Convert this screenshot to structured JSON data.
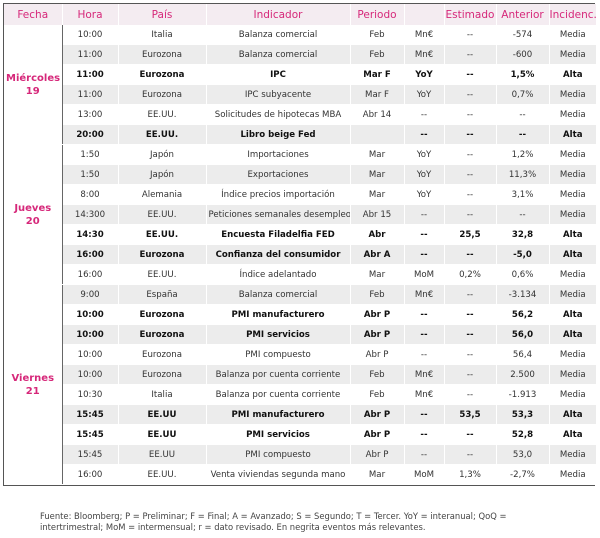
{
  "headers": [
    "Fecha",
    "Hora",
    "País",
    "Indicador",
    "Periodo",
    "",
    "Estimado",
    "Anterior",
    "Incidenc."
  ],
  "days": [
    {
      "label": "Miércoles 19",
      "rows": [
        {
          "hora": "10:00",
          "pais": "Italia",
          "indicador": "Balanza comercial",
          "periodo": "Feb",
          "unidad": "Mn€",
          "estimado": "--",
          "anterior": "-574",
          "incidencia": "Media",
          "bold": false
        },
        {
          "hora": "11:00",
          "pais": "Eurozona",
          "indicador": "Balanza comercial",
          "periodo": "Feb",
          "unidad": "Mn€",
          "estimado": "--",
          "anterior": "-600",
          "incidencia": "Media",
          "bold": false
        },
        {
          "hora": "11:00",
          "pais": "Eurozona",
          "indicador": "IPC",
          "periodo": "Mar F",
          "unidad": "YoY",
          "estimado": "--",
          "anterior": "1,5%",
          "incidencia": "Alta",
          "bold": true
        },
        {
          "hora": "11:00",
          "pais": "Eurozona",
          "indicador": "IPC subyacente",
          "periodo": "Mar F",
          "unidad": "YoY",
          "estimado": "--",
          "anterior": "0,7%",
          "incidencia": "Media",
          "bold": false
        },
        {
          "hora": "13:00",
          "pais": "EE.UU.",
          "indicador": "Solicitudes de hipotecas MBA",
          "periodo": "Abr 14",
          "unidad": "--",
          "estimado": "--",
          "anterior": "--",
          "incidencia": "Media",
          "bold": false
        },
        {
          "hora": "20:00",
          "pais": "EE.UU.",
          "indicador": "Libro beige Fed",
          "periodo": "",
          "unidad": "--",
          "estimado": "--",
          "anterior": "--",
          "incidencia": "Alta",
          "bold": true
        }
      ]
    },
    {
      "label": "Jueves 20",
      "rows": [
        {
          "hora": "1:50",
          "pais": "Japón",
          "indicador": "Importaciones",
          "periodo": "Mar",
          "unidad": "YoY",
          "estimado": "--",
          "anterior": "1,2%",
          "incidencia": "Media",
          "bold": false
        },
        {
          "hora": "1:50",
          "pais": "Japón",
          "indicador": "Exportaciones",
          "periodo": "Mar",
          "unidad": "YoY",
          "estimado": "--",
          "anterior": "11,3%",
          "incidencia": "Media",
          "bold": false
        },
        {
          "hora": "8:00",
          "pais": "Alemania",
          "indicador": "Índice precios importación",
          "periodo": "Mar",
          "unidad": "YoY",
          "estimado": "--",
          "anterior": "3,1%",
          "incidencia": "Media",
          "bold": false
        },
        {
          "hora": "14:300",
          "pais": "EE.UU.",
          "indicador": "Peticiones semanales desempleo",
          "periodo": "Abr 15",
          "unidad": "--",
          "estimado": "--",
          "anterior": "--",
          "incidencia": "Media",
          "bold": false
        },
        {
          "hora": "14:30",
          "pais": "EE.UU.",
          "indicador": "Encuesta Filadelfia FED",
          "periodo": "Abr",
          "unidad": "--",
          "estimado": "25,5",
          "anterior": "32,8",
          "incidencia": "Alta",
          "bold": true
        },
        {
          "hora": "16:00",
          "pais": "Eurozona",
          "indicador": "Confianza del consumidor",
          "periodo": "Abr A",
          "unidad": "--",
          "estimado": "--",
          "anterior": "-5,0",
          "incidencia": "Alta",
          "bold": true
        },
        {
          "hora": "16:00",
          "pais": "EE.UU.",
          "indicador": "Índice adelantado",
          "periodo": "Mar",
          "unidad": "MoM",
          "estimado": "0,2%",
          "anterior": "0,6%",
          "incidencia": "Media",
          "bold": false
        }
      ]
    },
    {
      "label": "Viernes 21",
      "rows": [
        {
          "hora": "9:00",
          "pais": "España",
          "indicador": "Balanza comercial",
          "periodo": "Feb",
          "unidad": "Mn€",
          "estimado": "--",
          "anterior": "-3.134",
          "incidencia": "Media",
          "bold": false
        },
        {
          "hora": "10:00",
          "pais": "Eurozona",
          "indicador": "PMI manufacturero",
          "periodo": "Abr P",
          "unidad": "--",
          "estimado": "--",
          "anterior": "56,2",
          "incidencia": "Alta",
          "bold": true
        },
        {
          "hora": "10:00",
          "pais": "Eurozona",
          "indicador": "PMI servicios",
          "periodo": "Abr P",
          "unidad": "--",
          "estimado": "--",
          "anterior": "56,0",
          "incidencia": "Alta",
          "bold": true
        },
        {
          "hora": "10:00",
          "pais": "Eurozona",
          "indicador": "PMI compuesto",
          "periodo": "Abr P",
          "unidad": "--",
          "estimado": "--",
          "anterior": "56,4",
          "incidencia": "Media",
          "bold": false
        },
        {
          "hora": "10:00",
          "pais": "Eurozona",
          "indicador": "Balanza por cuenta corriente",
          "periodo": "Feb",
          "unidad": "Mn€",
          "estimado": "--",
          "anterior": "2.500",
          "incidencia": "Media",
          "bold": false
        },
        {
          "hora": "10:30",
          "pais": "Italia",
          "indicador": "Balanza por cuenta corriente",
          "periodo": "Feb",
          "unidad": "Mn€",
          "estimado": "--",
          "anterior": "-1.913",
          "incidencia": "Media",
          "bold": false
        },
        {
          "hora": "15:45",
          "pais": "EE.UU",
          "indicador": "PMI manufacturero",
          "periodo": "Abr P",
          "unidad": "--",
          "estimado": "53,5",
          "anterior": "53,3",
          "incidencia": "Alta",
          "bold": true
        },
        {
          "hora": "15:45",
          "pais": "EE.UU",
          "indicador": "PMI servicios",
          "periodo": "Abr P",
          "unidad": "--",
          "estimado": "--",
          "anterior": "52,8",
          "incidencia": "Alta",
          "bold": true
        },
        {
          "hora": "15:45",
          "pais": "EE.UU",
          "indicador": "PMI compuesto",
          "periodo": "Abr P",
          "unidad": "--",
          "estimado": "--",
          "anterior": "53,0",
          "incidencia": "Media",
          "bold": false
        },
        {
          "hora": "16:00",
          "pais": "EE.UU.",
          "indicador": "Venta viviendas segunda mano",
          "periodo": "Mar",
          "unidad": "MoM",
          "estimado": "1,3%",
          "anterior": "-2,7%",
          "incidencia": "Media",
          "bold": false
        }
      ]
    }
  ],
  "footnote": "Fuente: Bloomberg; P = Preliminar; F = Final; A = Avanzado; S = Segundo; T = Tercer. YoY = interanual; QoQ = intertrimestral; MoM = intermensual; r = dato revisado. En negrita eventos más relevantes.",
  "colors": {
    "accent": "#d6287a",
    "header_bg": "#f4ecf1",
    "row_alt": "#ececec"
  }
}
